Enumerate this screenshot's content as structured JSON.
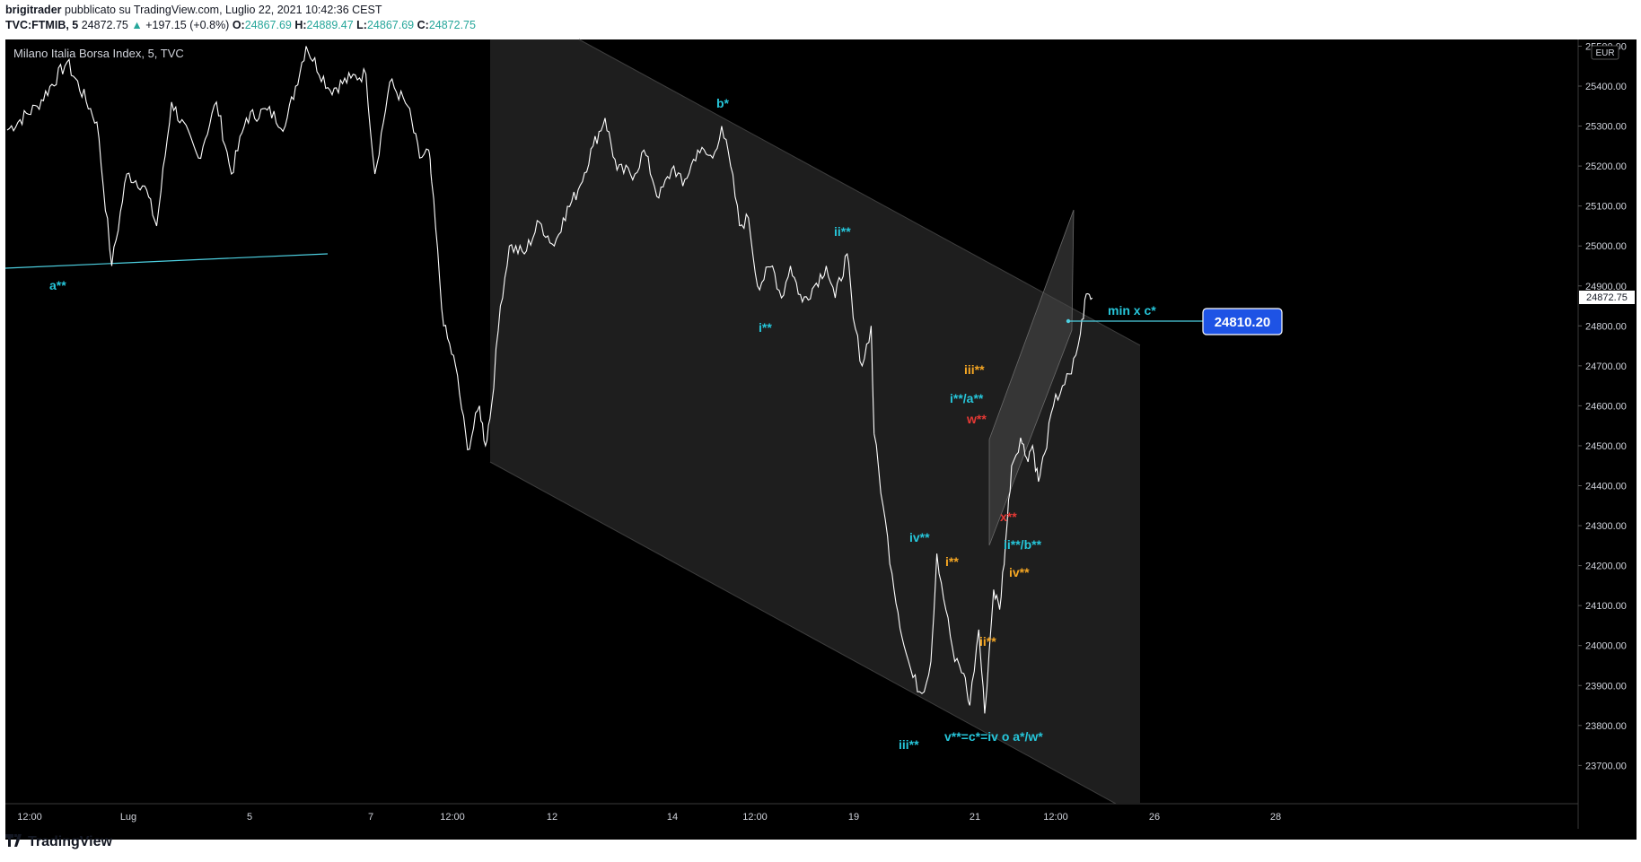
{
  "header": {
    "author": "brigitrader",
    "published": "pubblicato su TradingView.com, Luglio 22, 2021 10:42:36 CEST",
    "symbol": "TVC:FTMIB, 5",
    "last": "24872.75",
    "change_arrow": "▲",
    "change": "+197.15 (+0.8%)",
    "o_label": "O:",
    "o_value": "24867.69",
    "h_label": "H:",
    "h_value": "24889.47",
    "l_label": "L:",
    "l_value": "24867.69",
    "c_label": "C:",
    "c_value": "24872.75"
  },
  "pane_title": "Milano Italia Borsa Index, 5, TVC",
  "currency": "EUR",
  "price_axis": [
    "25500.00",
    "25400.00",
    "25300.00",
    "25200.00",
    "25100.00",
    "25000.00",
    "24900.00",
    "24800.00",
    "24700.00",
    "24600.00",
    "24500.00",
    "24400.00",
    "24300.00",
    "24200.00",
    "24100.00",
    "24000.00",
    "23900.00",
    "23800.00",
    "23700.00"
  ],
  "last_price_tag": "24872.75",
  "target_box": "24810.20",
  "time_axis": [
    "12:00",
    "Lug",
    "5",
    "7",
    "12:00",
    "12",
    "14",
    "12:00",
    "19",
    "21",
    "12:00",
    "26",
    "28"
  ],
  "annotations": {
    "a2": "a**",
    "b1": "b*",
    "ii2_top": "ii**",
    "i2_top": "i**",
    "iii2_orange": "iii**",
    "i2a2": "i**/a**",
    "w2": "w**",
    "x2": "x**",
    "ii2b2": "ii**/b**",
    "iv2_orange": "iv**",
    "iv2_teal": "iv**",
    "i2_orange": "i**",
    "ii2_orange": "ii**",
    "iii2_teal": "iii**",
    "v2": "v**=c*=iv o a*/w*",
    "min_x_c": "min x c*"
  },
  "footer": {
    "logo": "TradingView"
  },
  "chart_data": {
    "type": "line",
    "title": "Milano Italia Borsa Index, 5, TVC",
    "ylabel": "EUR",
    "ylim": [
      23620,
      25530
    ],
    "series": [
      {
        "name": "FTMIB",
        "points": [
          [
            0,
            25290
          ],
          [
            1,
            25350
          ],
          [
            2,
            25460
          ],
          [
            3,
            25310
          ],
          [
            3.5,
            24950
          ],
          [
            4,
            25180
          ],
          [
            4.6,
            25150
          ],
          [
            5,
            25050
          ],
          [
            5.5,
            25360
          ],
          [
            6.4,
            25220
          ],
          [
            7,
            25360
          ],
          [
            7.5,
            25180
          ],
          [
            8,
            25320
          ],
          [
            8.7,
            25340
          ],
          [
            9.3,
            25300
          ],
          [
            10,
            25500
          ],
          [
            10.8,
            25390
          ],
          [
            11.5,
            25420
          ],
          [
            12,
            25430
          ],
          [
            12.3,
            25180
          ],
          [
            12.8,
            25410
          ],
          [
            13.4,
            25350
          ],
          [
            13.8,
            25220
          ],
          [
            14.1,
            25240
          ],
          [
            14.2,
            25160
          ],
          [
            14.6,
            24800
          ],
          [
            15,
            24700
          ],
          [
            15.4,
            24490
          ],
          [
            15.8,
            24600
          ],
          [
            16,
            24500
          ],
          [
            16.2,
            24600
          ],
          [
            16.5,
            24850
          ],
          [
            16.8,
            25000
          ],
          [
            17.3,
            24980
          ],
          [
            17.8,
            25060
          ],
          [
            18.3,
            25000
          ],
          [
            18.6,
            25070
          ],
          [
            19.1,
            25140
          ],
          [
            19.6,
            25250
          ],
          [
            20,
            25320
          ],
          [
            20.4,
            25190
          ],
          [
            21,
            25180
          ],
          [
            21.3,
            25240
          ],
          [
            21.8,
            25120
          ],
          [
            22.3,
            25200
          ],
          [
            22.6,
            25150
          ],
          [
            23.1,
            25240
          ],
          [
            23.6,
            25220
          ],
          [
            23.9,
            25300
          ],
          [
            24.2,
            25200
          ],
          [
            24.5,
            25050
          ],
          [
            24.8,
            25070
          ],
          [
            25.1,
            24900
          ],
          [
            25.6,
            24950
          ],
          [
            25.9,
            24870
          ],
          [
            26.2,
            24950
          ],
          [
            26.6,
            24860
          ],
          [
            27,
            24900
          ],
          [
            27.4,
            24950
          ],
          [
            27.7,
            24870
          ],
          [
            28.1,
            24980
          ],
          [
            28.3,
            24820
          ],
          [
            28.6,
            24700
          ],
          [
            28.9,
            24800
          ],
          [
            29,
            24530
          ],
          [
            29.3,
            24350
          ],
          [
            29.6,
            24180
          ],
          [
            30,
            24000
          ],
          [
            30.3,
            23920
          ],
          [
            30.6,
            23880
          ],
          [
            30.9,
            23960
          ],
          [
            31.1,
            24230
          ],
          [
            31.4,
            24090
          ],
          [
            31.7,
            23960
          ],
          [
            32,
            23930
          ],
          [
            32.2,
            23850
          ],
          [
            32.5,
            24040
          ],
          [
            32.7,
            23830
          ],
          [
            33,
            24140
          ],
          [
            33.2,
            24090
          ],
          [
            33.4,
            24260
          ],
          [
            33.6,
            24450
          ],
          [
            33.9,
            24520
          ],
          [
            34.1,
            24470
          ],
          [
            34.3,
            24500
          ],
          [
            34.5,
            24410
          ],
          [
            34.7,
            24480
          ],
          [
            35,
            24600
          ],
          [
            35.3,
            24650
          ],
          [
            35.6,
            24680
          ],
          [
            35.9,
            24780
          ],
          [
            36.1,
            24880
          ],
          [
            36.3,
            24870
          ]
        ]
      }
    ],
    "annotations_positions_note": "wave labels per header.annotations",
    "target_level": 24810.2,
    "last_value": 24872.75
  }
}
